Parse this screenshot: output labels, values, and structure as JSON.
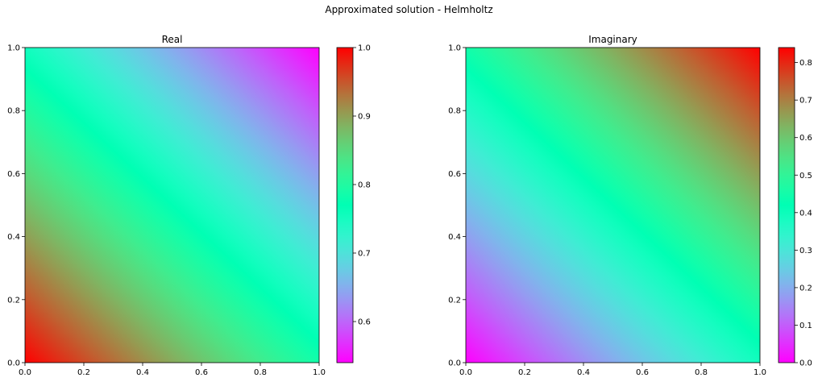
{
  "figure": {
    "title": "Approximated solution - Helmholtz"
  },
  "colors": {
    "axis": "#000000",
    "background": "#ffffff"
  },
  "chart_data": [
    {
      "type": "heatmap",
      "title": "Real",
      "xlabel": "",
      "ylabel": "",
      "xlim": [
        0,
        1
      ],
      "ylim": [
        0,
        1
      ],
      "xticks": [
        "0.0",
        "0.2",
        "0.4",
        "0.6",
        "0.8",
        "1.0"
      ],
      "yticks": [
        "0.0",
        "0.2",
        "0.4",
        "0.6",
        "0.8",
        "1.0"
      ],
      "colormap": "rainbow",
      "grid": false,
      "colorbar": {
        "vmin": 0.54,
        "vmax": 1.0,
        "ticks": [
          0.6,
          0.7,
          0.8,
          0.9,
          1.0
        ],
        "tick_labels": [
          "0.6",
          "0.7",
          "0.8",
          "0.9",
          "1.0"
        ]
      },
      "corner_values": {
        "x0y0": 1.0,
        "x1y0": 0.85,
        "x0y1": 0.85,
        "x1y1": 0.54
      }
    },
    {
      "type": "heatmap",
      "title": "Imaginary",
      "xlabel": "",
      "ylabel": "",
      "xlim": [
        0,
        1
      ],
      "ylim": [
        0,
        1
      ],
      "xticks": [
        "0.0",
        "0.2",
        "0.4",
        "0.6",
        "0.8",
        "1.0"
      ],
      "yticks": [
        "0.0",
        "0.2",
        "0.4",
        "0.6",
        "0.8",
        "1.0"
      ],
      "colormap": "rainbow",
      "grid": false,
      "colorbar": {
        "vmin": 0.0,
        "vmax": 0.84,
        "ticks": [
          0.0,
          0.1,
          0.2,
          0.3,
          0.4,
          0.5,
          0.6,
          0.7,
          0.8
        ],
        "tick_labels": [
          "0.0",
          "0.1",
          "0.2",
          "0.3",
          "0.4",
          "0.5",
          "0.6",
          "0.7",
          "0.8"
        ]
      },
      "corner_values": {
        "x0y0": 0.0,
        "x1y0": 0.54,
        "x0y1": 0.54,
        "x1y1": 0.84
      }
    }
  ]
}
